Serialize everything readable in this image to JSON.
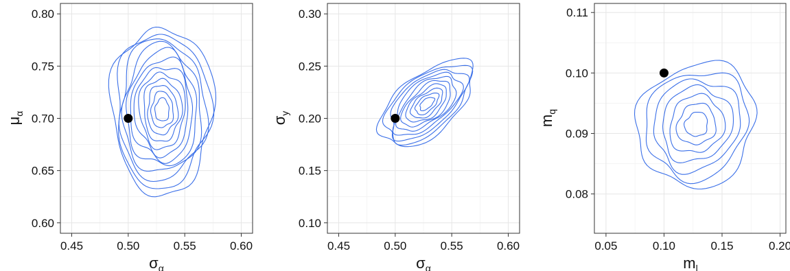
{
  "colors": {
    "contour": "#3a6fe8",
    "point": "#000000",
    "panel_border": "#333333",
    "grid": "#e6e6e6"
  },
  "chart_data": [
    {
      "type": "contour",
      "title": "",
      "xlabel": {
        "main": "σ",
        "sub": "α"
      },
      "ylabel": {
        "main": "μ",
        "sub": "α"
      },
      "xlim": [
        0.44,
        0.61
      ],
      "ylim": [
        0.59,
        0.81
      ],
      "xticks": [
        0.45,
        0.5,
        0.55,
        0.6
      ],
      "xtick_labels": [
        "0.45",
        "0.50",
        "0.55",
        "0.60"
      ],
      "yticks": [
        0.6,
        0.65,
        0.7,
        0.75,
        0.8
      ],
      "ytick_labels": [
        "0.60",
        "0.65",
        "0.70",
        "0.75",
        "0.80"
      ],
      "grid": true,
      "point": {
        "x": 0.5,
        "y": 0.7
      },
      "density": {
        "cx": 0.53,
        "cy": 0.708,
        "levels": 12,
        "outer_rx": 0.045,
        "outer_ry": 0.08,
        "tilt": 0.0
      }
    },
    {
      "type": "contour",
      "title": "",
      "xlabel": {
        "main": "σ",
        "sub": "α"
      },
      "ylabel": {
        "main": "σ",
        "sub": "y"
      },
      "xlim": [
        0.44,
        0.61
      ],
      "ylim": [
        0.09,
        0.31
      ],
      "xticks": [
        0.45,
        0.5,
        0.55,
        0.6
      ],
      "xtick_labels": [
        "0.45",
        "0.50",
        "0.55",
        "0.60"
      ],
      "yticks": [
        0.1,
        0.15,
        0.2,
        0.25,
        0.3
      ],
      "ytick_labels": [
        "0.10",
        "0.15",
        "0.20",
        "0.25",
        "0.30"
      ],
      "grid": true,
      "point": {
        "x": 0.5,
        "y": 0.2
      },
      "density": {
        "cx": 0.528,
        "cy": 0.214,
        "levels": 10,
        "outer_rx": 0.05,
        "outer_ry": 0.028,
        "tilt": -0.72
      }
    },
    {
      "type": "contour",
      "title": "",
      "xlabel": {
        "main": "m",
        "sub": "l"
      },
      "ylabel": {
        "main": "m",
        "sub": "q"
      },
      "xlim": [
        0.04,
        0.205
      ],
      "ylim": [
        0.0735,
        0.1115
      ],
      "xticks": [
        0.05,
        0.1,
        0.15,
        0.2
      ],
      "xtick_labels": [
        "0.05",
        "0.10",
        "0.15",
        "0.20"
      ],
      "yticks": [
        0.08,
        0.09,
        0.1,
        0.11
      ],
      "ytick_labels": [
        "0.08",
        "0.09",
        "0.10",
        "0.11"
      ],
      "grid": true,
      "point": {
        "x": 0.1,
        "y": 0.1
      },
      "density": {
        "cx": 0.128,
        "cy": 0.0915,
        "levels": 7,
        "outer_rx": 0.055,
        "outer_ry": 0.0095,
        "tilt": -1.05
      }
    }
  ]
}
